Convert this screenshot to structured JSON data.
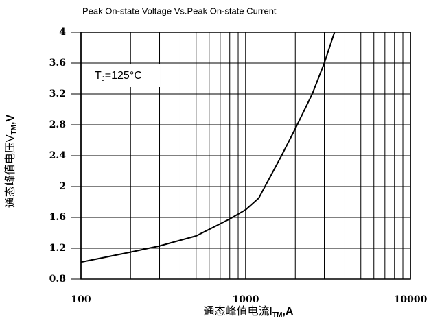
{
  "chart_data": {
    "type": "line",
    "title": "Peak On-state Voltage Vs.Peak On-state Current",
    "y_label": {
      "main": "通态峰值电压V",
      "sub": "TM",
      "tail": ",V"
    },
    "x_label": {
      "main": "通态峰值电流I",
      "sub": "TM",
      "tail": ",A"
    },
    "annotation": {
      "main": "T",
      "sub": "J",
      "tail": "=125°C"
    },
    "x_log": true,
    "xlim": [
      100,
      10000
    ],
    "xticks": [
      100,
      1000,
      10000
    ],
    "xminor_ticks": [
      200,
      300,
      400,
      500,
      600,
      700,
      800,
      900,
      2000,
      3000,
      4000,
      5000,
      6000,
      7000,
      8000,
      9000
    ],
    "ylim": [
      0.8,
      4
    ],
    "yticks": [
      0.8,
      1.2,
      1.6,
      2,
      2.4,
      2.8,
      3.2,
      3.6,
      4
    ],
    "grid": true,
    "series": [
      {
        "name": "TJ=125°C",
        "color": "#000000",
        "x": [
          100,
          200,
          300,
          500,
          800,
          1000,
          1200,
          1650,
          2000,
          2535,
          3000,
          3460
        ],
        "values": [
          1.02,
          1.15,
          1.23,
          1.36,
          1.58,
          1.7,
          1.85,
          2.4,
          2.75,
          3.2,
          3.6,
          4.0
        ]
      }
    ]
  }
}
